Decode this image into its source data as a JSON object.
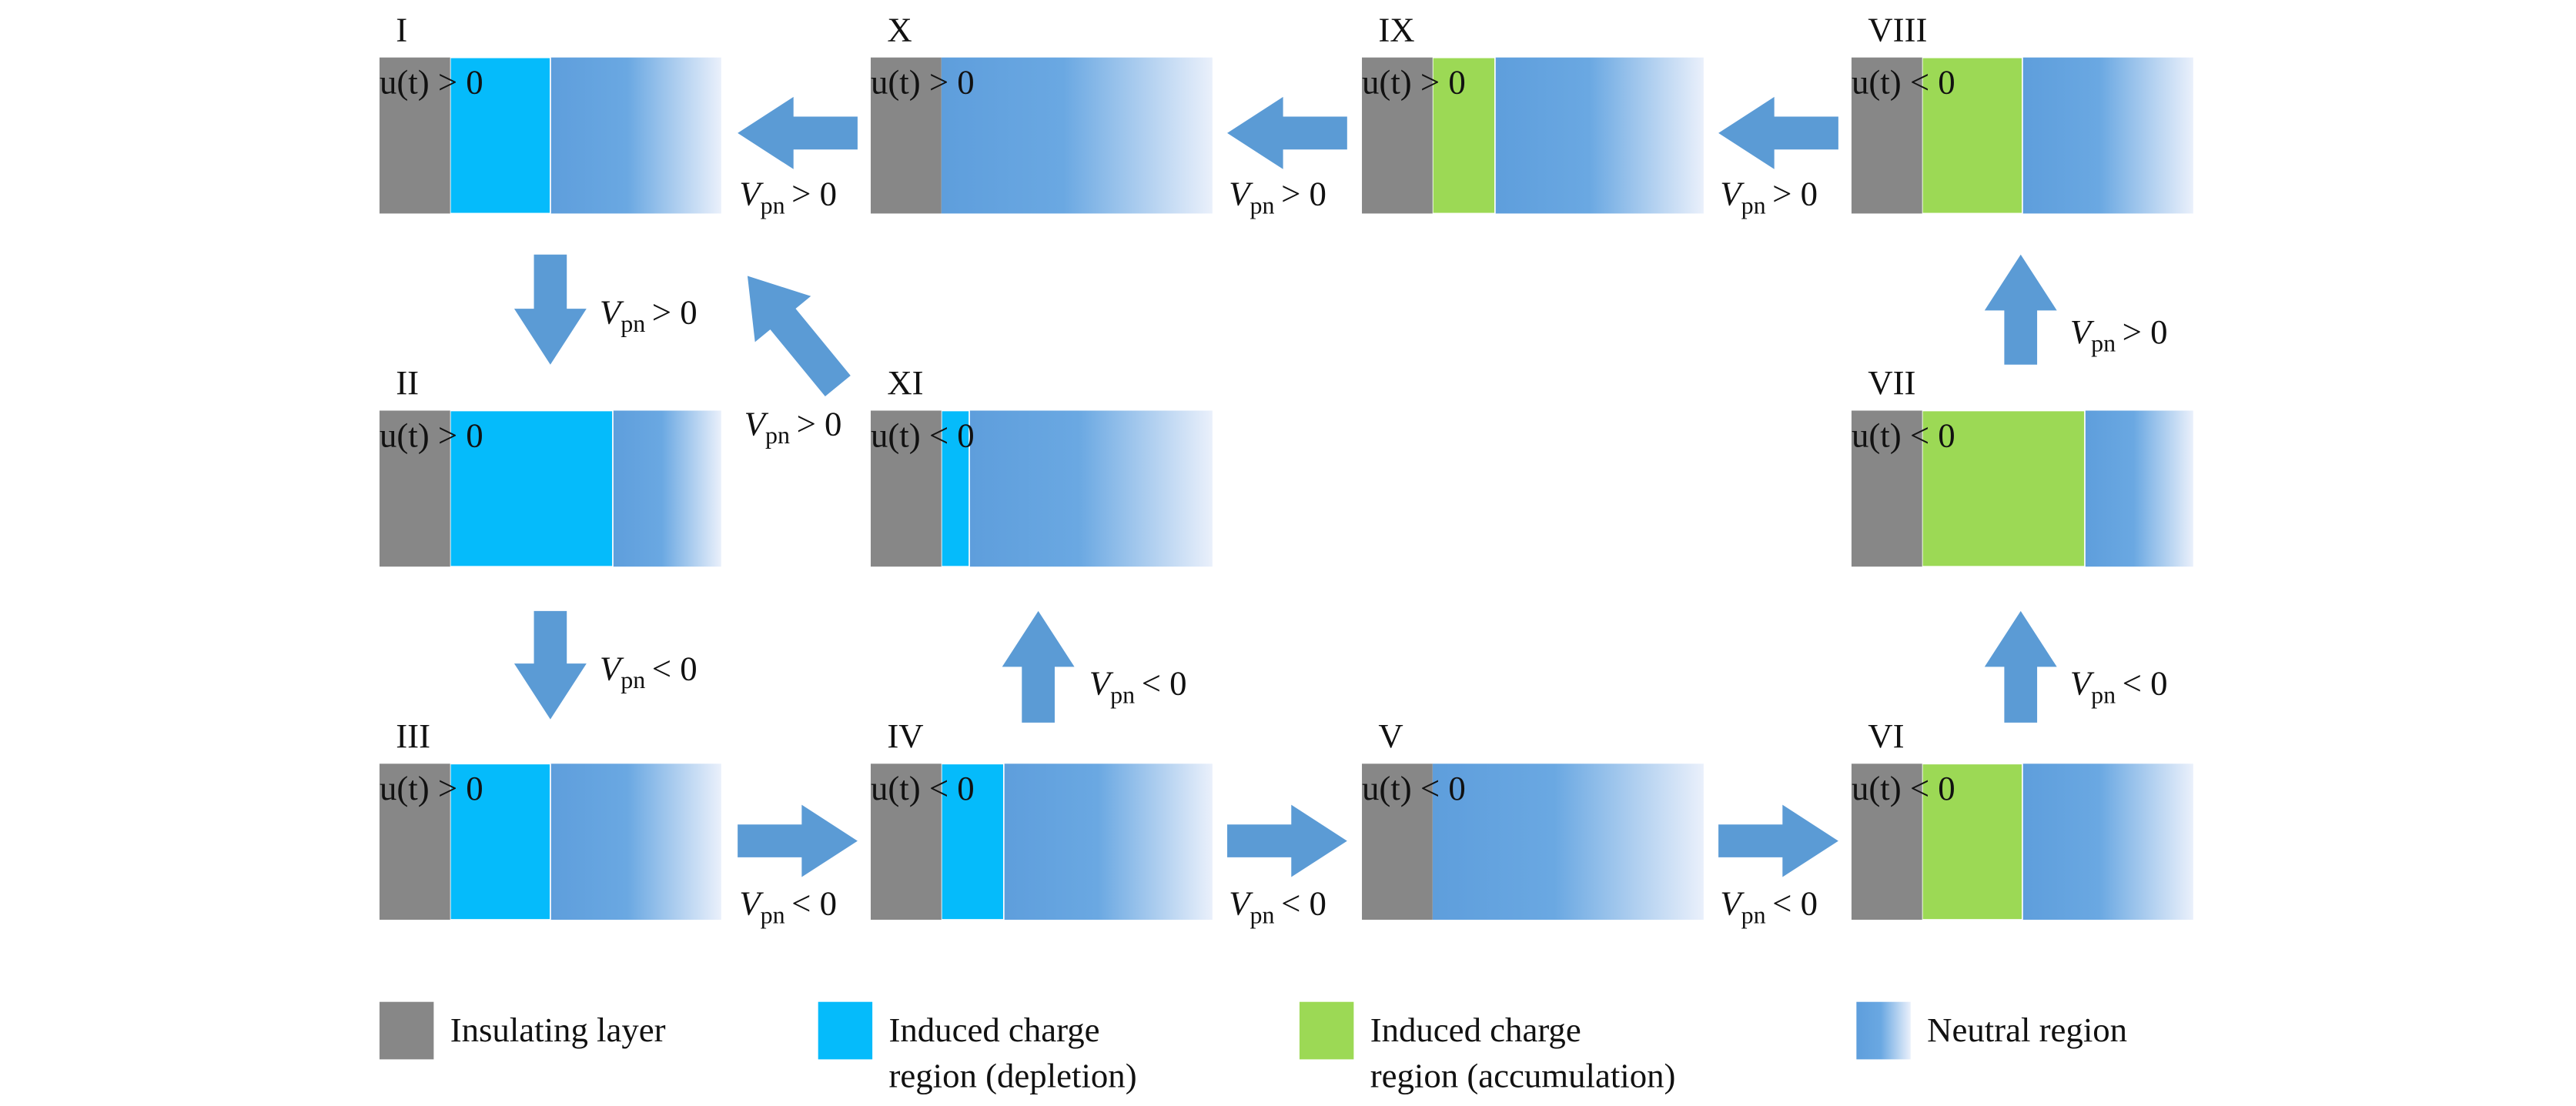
{
  "panels": [
    {
      "label": "I",
      "condition": "u(t) > 0"
    },
    {
      "label": "II",
      "condition": "u(t) > 0"
    },
    {
      "label": "III",
      "condition": "u(t) > 0"
    },
    {
      "label": "IV",
      "condition": "u(t) < 0"
    },
    {
      "label": "V",
      "condition": "u(t) < 0"
    },
    {
      "label": "VI",
      "condition": "u(t) < 0"
    },
    {
      "label": "VII",
      "condition": "u(t) < 0"
    },
    {
      "label": "VIII",
      "condition": "u(t) < 0"
    },
    {
      "label": "IX",
      "condition": "u(t) > 0"
    },
    {
      "label": "X",
      "condition": "u(t) > 0"
    },
    {
      "label": "XI",
      "condition": "u(t) < 0"
    }
  ],
  "arrows": [
    {
      "symbol": "V",
      "subscript": "pn",
      "relation": "> 0"
    },
    {
      "symbol": "V",
      "subscript": "pn",
      "relation": "< 0"
    },
    {
      "symbol": "V",
      "subscript": "pn",
      "relation": "< 0"
    },
    {
      "symbol": "V",
      "subscript": "pn",
      "relation": "< 0"
    },
    {
      "symbol": "V",
      "subscript": "pn",
      "relation": "< 0"
    },
    {
      "symbol": "V",
      "subscript": "pn",
      "relation": "< 0"
    },
    {
      "symbol": "V",
      "subscript": "pn",
      "relation": "> 0"
    },
    {
      "symbol": "V",
      "subscript": "pn",
      "relation": "> 0"
    },
    {
      "symbol": "V",
      "subscript": "pn",
      "relation": "> 0"
    },
    {
      "symbol": "V",
      "subscript": "pn",
      "relation": "> 0"
    },
    {
      "symbol": "V",
      "subscript": "pn",
      "relation": "< 0"
    },
    {
      "symbol": "V",
      "subscript": "pn",
      "relation": "> 0"
    }
  ],
  "legend": [
    {
      "lines": [
        "Insulating layer"
      ]
    },
    {
      "lines": [
        "Induced charge",
        "region (depletion)"
      ]
    },
    {
      "lines": [
        "Induced charge",
        "region (accumulation)"
      ]
    },
    {
      "lines": [
        "Neutral region"
      ]
    }
  ]
}
